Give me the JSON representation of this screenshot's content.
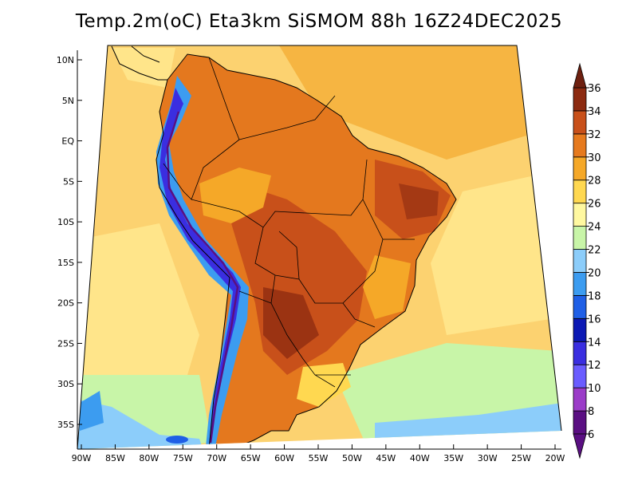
{
  "title": "Temp.2m(oC) Eta3km SiSMOM 88h 16Z24DEC2025",
  "map": {
    "variable": "2 m temperature",
    "units": "oC",
    "lat_labels": [
      "10N",
      "5N",
      "EQ",
      "5S",
      "10S",
      "15S",
      "20S",
      "25S",
      "30S",
      "35S"
    ],
    "lat_values": [
      10,
      5,
      0,
      -5,
      -10,
      -15,
      -20,
      -25,
      -30,
      -35
    ],
    "lon_labels": [
      "90W",
      "85W",
      "80W",
      "75W",
      "70W",
      "65W",
      "60W",
      "55W",
      "50W",
      "45W",
      "40W",
      "35W",
      "30W",
      "25W",
      "20W"
    ],
    "lon_values": [
      -90,
      -85,
      -80,
      -75,
      -70,
      -65,
      -60,
      -55,
      -50,
      -45,
      -40,
      -35,
      -30,
      -25,
      -20
    ]
  },
  "colorbar": {
    "levels": [
      "6",
      "8",
      "10",
      "12",
      "14",
      "16",
      "18",
      "20",
      "22",
      "24",
      "26",
      "28",
      "30",
      "32",
      "34",
      "36"
    ],
    "colors": [
      "#5a0f82",
      "#9b3cc8",
      "#6a5cff",
      "#3a2ee0",
      "#0c19b4",
      "#1f5fe6",
      "#3c9cf0",
      "#8ccdfa",
      "#c8f5a8",
      "#fff8a0",
      "#ffd850",
      "#f5a828",
      "#e67a1e",
      "#c8501a",
      "#8c2a10"
    ],
    "under_color": "#5a0f82",
    "over_color": "#6e2010"
  },
  "colors": {
    "ocean_warm": "#fcd270",
    "ocean_mid": "#ffe58a",
    "ocean_cool": "#c8f5a8",
    "ocean_cold": "#8ccdfa",
    "land_hot": "#e4781e",
    "land_hotter": "#c8501a",
    "andes": "#3a2ee0"
  }
}
